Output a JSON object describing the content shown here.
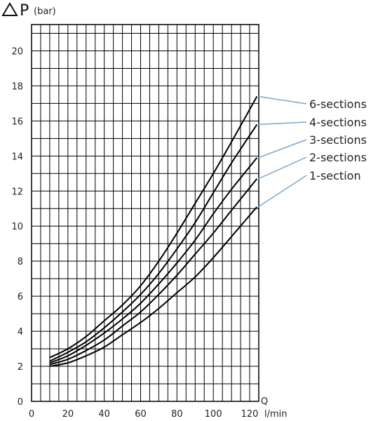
{
  "chart_data": {
    "type": "line",
    "y_axis": {
      "symbol": "P",
      "unit": "(bar)",
      "ticks": [
        "0",
        "2",
        "4",
        "6",
        "8",
        "10",
        "12",
        "14",
        "16",
        "18",
        "20"
      ],
      "ylim": [
        0,
        21.5
      ]
    },
    "x_axis": {
      "symbol": "Q",
      "unit": "l/min",
      "ticks": [
        "0",
        "20",
        "40",
        "60",
        "80",
        "100",
        "120"
      ],
      "xlim": [
        0,
        125
      ]
    },
    "grid": true,
    "legend_position": "right",
    "series": [
      {
        "name": "6-sections",
        "x": [
          10,
          20,
          30,
          40,
          50,
          60,
          70,
          80,
          90,
          100,
          110,
          124
        ],
        "y": [
          2.5,
          3.0,
          3.7,
          4.6,
          5.5,
          6.6,
          8.0,
          9.6,
          11.3,
          13.0,
          14.8,
          17.4
        ]
      },
      {
        "name": "4-sections",
        "x": [
          10,
          20,
          30,
          40,
          50,
          60,
          70,
          80,
          90,
          100,
          110,
          124
        ],
        "y": [
          2.3,
          2.8,
          3.4,
          4.2,
          5.1,
          6.1,
          7.3,
          8.7,
          10.2,
          11.9,
          13.6,
          15.8
        ]
      },
      {
        "name": "3-sections",
        "x": [
          10,
          20,
          30,
          40,
          50,
          60,
          70,
          80,
          90,
          100,
          110,
          124
        ],
        "y": [
          2.2,
          2.6,
          3.2,
          3.9,
          4.7,
          5.6,
          6.7,
          7.9,
          9.2,
          10.7,
          12.1,
          13.9
        ]
      },
      {
        "name": "2-sections",
        "x": [
          10,
          20,
          30,
          40,
          50,
          60,
          70,
          80,
          90,
          100,
          110,
          124
        ],
        "y": [
          2.1,
          2.4,
          2.9,
          3.5,
          4.3,
          5.1,
          6.1,
          7.2,
          8.4,
          9.6,
          10.9,
          12.7
        ]
      },
      {
        "name": "1-section",
        "x": [
          10,
          20,
          30,
          40,
          50,
          60,
          70,
          80,
          90,
          100,
          110,
          124
        ],
        "y": [
          2.0,
          2.2,
          2.6,
          3.1,
          3.8,
          4.5,
          5.3,
          6.2,
          7.1,
          8.2,
          9.4,
          11.1
        ]
      }
    ]
  },
  "colors": {
    "line": "#000000",
    "grid": "#000000",
    "legend_leader": "#7aa7cc"
  }
}
